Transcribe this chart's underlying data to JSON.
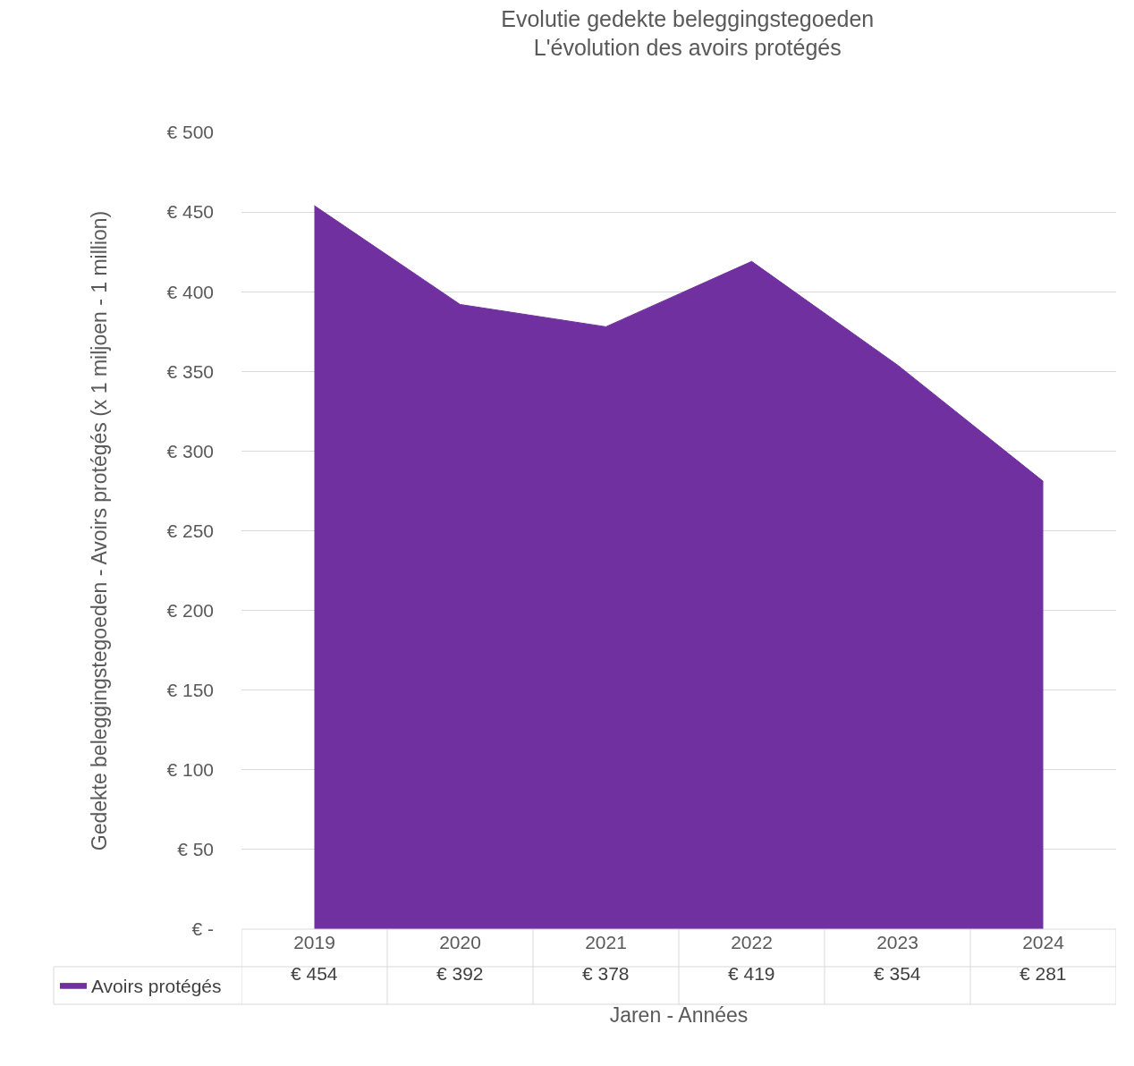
{
  "chart_data": {
    "type": "area",
    "title": "Evolutie gedekte beleggingstegoeden\nL'évolution des avoirs protégés",
    "xlabel": "Jaren - Années",
    "ylabel": "Gedekte beleggingstegoeden - Avoirs protégés (x 1 miljoen - 1 million)",
    "categories": [
      "2019",
      "2020",
      "2021",
      "2022",
      "2023",
      "2024"
    ],
    "series": [
      {
        "name": "Avoirs protégés",
        "color": "#7030a0",
        "values": [
          454,
          392,
          378,
          419,
          354,
          281
        ],
        "value_labels": [
          "€ 454",
          "€ 392",
          "€ 378",
          "€ 419",
          "€ 354",
          "€ 281"
        ]
      }
    ],
    "ylim": [
      0,
      500
    ],
    "yticks": [
      {
        "value": 0,
        "label": "€ -"
      },
      {
        "value": 50,
        "label": "€ 50"
      },
      {
        "value": 100,
        "label": "€ 100"
      },
      {
        "value": 150,
        "label": "€ 150"
      },
      {
        "value": 200,
        "label": "€ 200"
      },
      {
        "value": 250,
        "label": "€ 250"
      },
      {
        "value": 300,
        "label": "€ 300"
      },
      {
        "value": 350,
        "label": "€ 350"
      },
      {
        "value": 400,
        "label": "€ 400"
      },
      {
        "value": 450,
        "label": "€ 450"
      },
      {
        "value": 500,
        "label": "€ 500"
      }
    ],
    "grid": "y",
    "legend": "bottom left"
  }
}
